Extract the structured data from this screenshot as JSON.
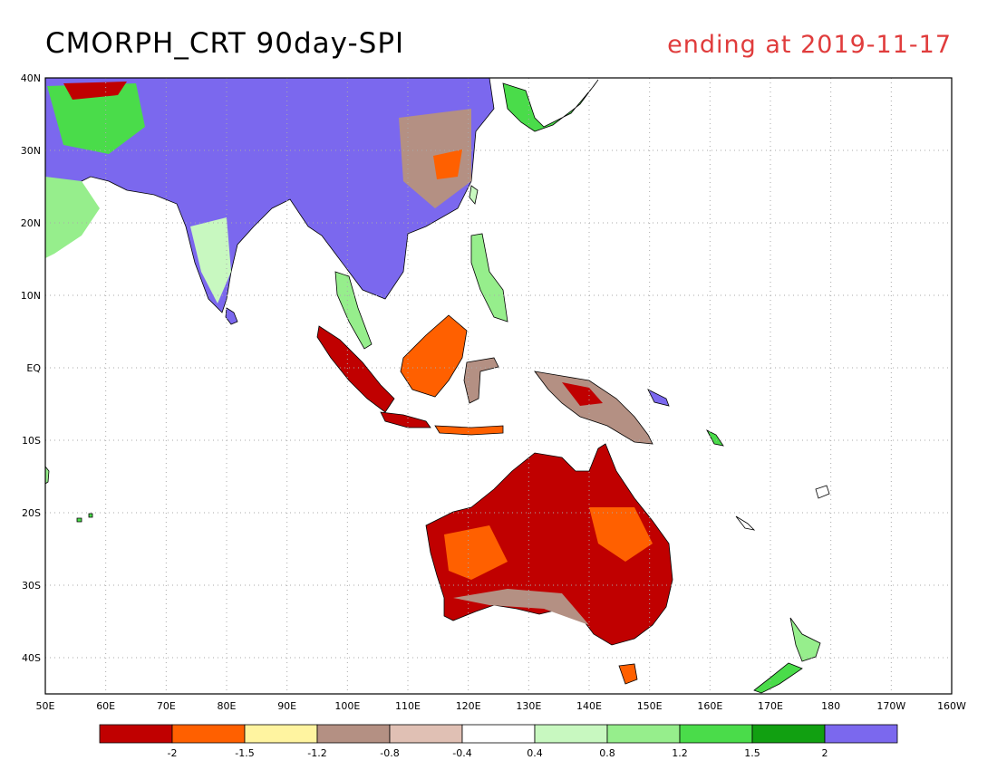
{
  "header": {
    "title": "CMORPH_CRT 90day-SPI",
    "subtitle": "ending at 2019-11-17",
    "subtitle_color": "#e03c3c"
  },
  "map": {
    "lat_labels": [
      "40N",
      "30N",
      "20N",
      "10N",
      "EQ",
      "10S",
      "20S",
      "30S",
      "40S"
    ],
    "lon_labels": [
      "50E",
      "60E",
      "70E",
      "80E",
      "90E",
      "100E",
      "110E",
      "120E",
      "130E",
      "140E",
      "150E",
      "160E",
      "170E",
      "180",
      "170W",
      "160W"
    ],
    "grid": "dotted"
  },
  "legend": {
    "colors": [
      "#c00000",
      "#ff6000",
      "#fff4a0",
      "#b49083",
      "#e0c0b4",
      "#ffffff",
      "#c8f8c0",
      "#96ee8c",
      "#4adc4a",
      "#11a011",
      "#7b68ee"
    ],
    "labels": [
      "-2",
      "-1.5",
      "-1.2",
      "-0.8",
      "-0.4",
      "0.4",
      "0.8",
      "1.2",
      "1.5",
      "2"
    ]
  }
}
